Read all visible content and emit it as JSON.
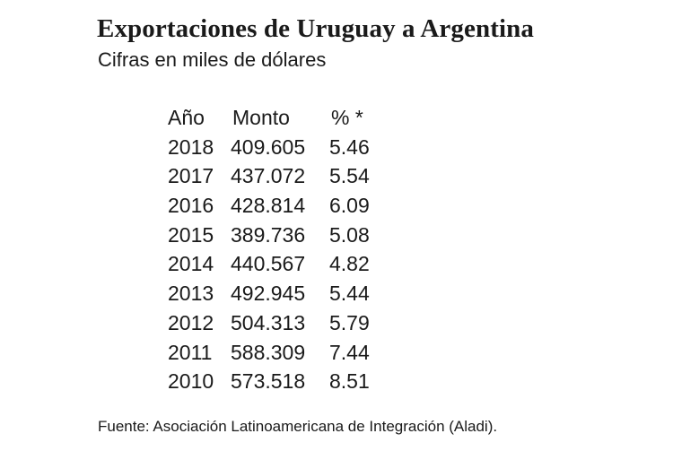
{
  "header": {
    "title": "Exportaciones de Uruguay a Argentina",
    "subtitle": "Cifras en miles de dólares"
  },
  "table": {
    "columns": [
      "Año",
      "Monto",
      "% *"
    ],
    "rows": [
      {
        "year": "2018",
        "amount": "409.605",
        "pct": "5.46"
      },
      {
        "year": "2017",
        "amount": "437.072",
        "pct": "5.54"
      },
      {
        "year": "2016",
        "amount": "428.814",
        "pct": "6.09"
      },
      {
        "year": "2015",
        "amount": "389.736",
        "pct": "5.08"
      },
      {
        "year": "2014",
        "amount": "440.567",
        "pct": "4.82"
      },
      {
        "year": "2013",
        "amount": "492.945",
        "pct": "5.44"
      },
      {
        "year": "2012",
        "amount": "504.313",
        "pct": "5.79"
      },
      {
        "year": "2011",
        "amount": "588.309",
        "pct": "7.44"
      },
      {
        "year": "2010",
        "amount": "573.518",
        "pct": "8.51"
      }
    ]
  },
  "footer": {
    "source": "Fuente: Asociación Latinoamericana de Integración (Aladi)."
  },
  "chart_data": {
    "type": "table",
    "title": "Exportaciones de Uruguay a Argentina",
    "subtitle": "Cifras en miles de dólares",
    "columns": [
      "Año",
      "Monto",
      "% *"
    ],
    "categories": [
      "2018",
      "2017",
      "2016",
      "2015",
      "2014",
      "2013",
      "2012",
      "2011",
      "2010"
    ],
    "series": [
      {
        "name": "Monto",
        "values": [
          409605,
          437072,
          428814,
          389736,
          440567,
          492945,
          504313,
          588309,
          573518
        ]
      },
      {
        "name": "% *",
        "values": [
          5.46,
          5.54,
          6.09,
          5.08,
          4.82,
          5.44,
          5.79,
          7.44,
          8.51
        ]
      }
    ],
    "annotations": [
      "Fuente: Asociación Latinoamericana de Integración (Aladi)."
    ]
  }
}
